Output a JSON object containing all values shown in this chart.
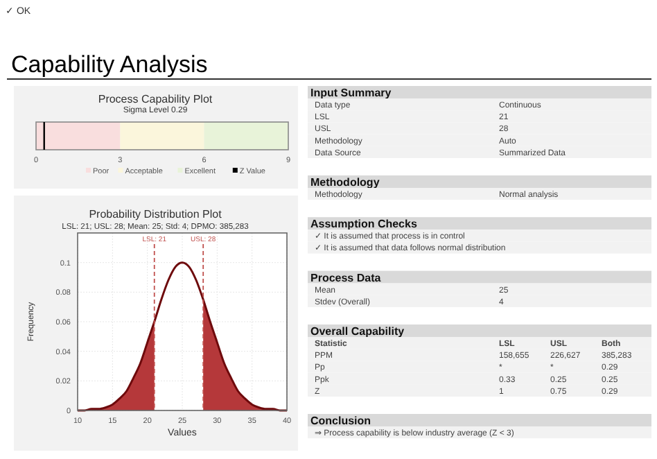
{
  "chart_data": [
    {
      "type": "other",
      "title": "Capability Analysis",
      "annotations": [
        "✓ OK"
      ]
    },
    {
      "type": "bar",
      "title": "Process Capability Plot",
      "subtitle": "Sigma Level  0.29",
      "orientation": "horizontal",
      "stacked": true,
      "categories": [
        null
      ],
      "xlim": [
        0,
        9
      ],
      "xticks": [
        0,
        3,
        6,
        9
      ],
      "legend": "bottom",
      "series": [
        {
          "name": "Poor",
          "color": "#f9dede",
          "values": [
            3
          ]
        },
        {
          "name": "Acceptable",
          "color": "#fbf6dc",
          "values": [
            3
          ]
        },
        {
          "name": "Excellent",
          "color": "#e8f3d9",
          "values": [
            3
          ]
        }
      ],
      "ref_lines": [
        {
          "axis": "x",
          "value": 0.29,
          "label": "Z Value",
          "color": "#000000"
        }
      ]
    },
    {
      "type": "area",
      "title": "Probability Distribution Plot",
      "subtitle": "LSL: 21; USL: 28; Mean: 25; Std: 4; DPMO: 385,283",
      "xlabel": "Values",
      "ylabel": "Frequency",
      "xlim": [
        10,
        40
      ],
      "ylim": [
        0,
        0.12
      ],
      "xticks": [
        10,
        15,
        20,
        25,
        30,
        35,
        40
      ],
      "yticks": [
        0,
        0.02,
        0.04,
        0.06,
        0.08,
        0.1
      ],
      "grid": true,
      "series": [
        {
          "type": "area",
          "color": "#b5383a",
          "x": [
            10,
            11,
            12,
            13,
            14,
            15,
            16,
            17,
            18,
            19,
            20,
            21
          ],
          "values": [
            0,
            0,
            0.001,
            0.001,
            0.002,
            0.004,
            0.008,
            0.013,
            0.022,
            0.032,
            0.046,
            0.06
          ]
        },
        {
          "type": "area",
          "color": "#b5383a",
          "x": [
            28,
            29,
            30,
            31,
            32,
            33,
            34,
            35,
            36,
            37,
            38,
            39,
            40
          ],
          "values": [
            0.075,
            0.06,
            0.046,
            0.032,
            0.022,
            0.013,
            0.008,
            0.004,
            0.002,
            0.001,
            0.001,
            0,
            0
          ]
        },
        {
          "type": "line",
          "color": "#6e0a0c",
          "x": [
            10,
            11,
            12,
            13,
            14,
            15,
            16,
            17,
            18,
            19,
            20,
            21,
            22,
            23,
            24,
            25,
            26,
            27,
            28,
            29,
            30,
            31,
            32,
            33,
            34,
            35,
            36,
            37,
            38,
            39,
            40
          ],
          "values": [
            0,
            0,
            0.001,
            0.001,
            0.002,
            0.004,
            0.008,
            0.013,
            0.022,
            0.032,
            0.046,
            0.06,
            0.075,
            0.088,
            0.097,
            0.1,
            0.097,
            0.088,
            0.075,
            0.06,
            0.046,
            0.032,
            0.022,
            0.013,
            0.008,
            0.004,
            0.002,
            0.001,
            0.001,
            0,
            0
          ]
        }
      ],
      "ref_lines": [
        {
          "axis": "x",
          "value": 21,
          "label": "LSL: 21",
          "color": "#c0504d",
          "line_style": "dashed"
        },
        {
          "axis": "x",
          "value": 28,
          "label": "USL: 28",
          "color": "#c0504d",
          "line_style": "dashed"
        }
      ]
    },
    {
      "type": "other",
      "title": "Input Summary",
      "cells": [
        [
          "Data type",
          "Continuous"
        ],
        [
          "LSL",
          "21"
        ],
        [
          "USL",
          "28"
        ],
        [
          "Methodology",
          "Auto"
        ],
        [
          "Data Source",
          "Summarized Data"
        ]
      ]
    },
    {
      "type": "other",
      "title": "Methodology",
      "cells": [
        [
          "Methodology",
          "Normal analysis"
        ]
      ]
    },
    {
      "type": "other",
      "title": "Assumption Checks",
      "cells": [
        [
          "✓ It is assumed that process is in control"
        ],
        [
          "✓ It is assumed that data follows normal distribution"
        ]
      ]
    },
    {
      "type": "other",
      "title": "Process Data",
      "cells": [
        [
          "Mean",
          "25"
        ],
        [
          "Stdev (Overall)",
          "4"
        ]
      ]
    },
    {
      "type": "other",
      "title": "Overall Capability",
      "cells": [
        [
          "Statistic",
          "LSL",
          "USL",
          "Both"
        ],
        [
          "PPM",
          "158,655",
          "226,627",
          "385,283"
        ],
        [
          "Pp",
          "*",
          "*",
          "0.29"
        ],
        [
          "Ppk",
          "0.33",
          "0.25",
          "0.25"
        ],
        [
          "Z",
          "1",
          "0.75",
          "0.29"
        ]
      ]
    },
    {
      "type": "other",
      "title": "Conclusion",
      "cells": [
        [
          "⇒ Process capability is below industry average (Z < 3)"
        ]
      ]
    }
  ]
}
